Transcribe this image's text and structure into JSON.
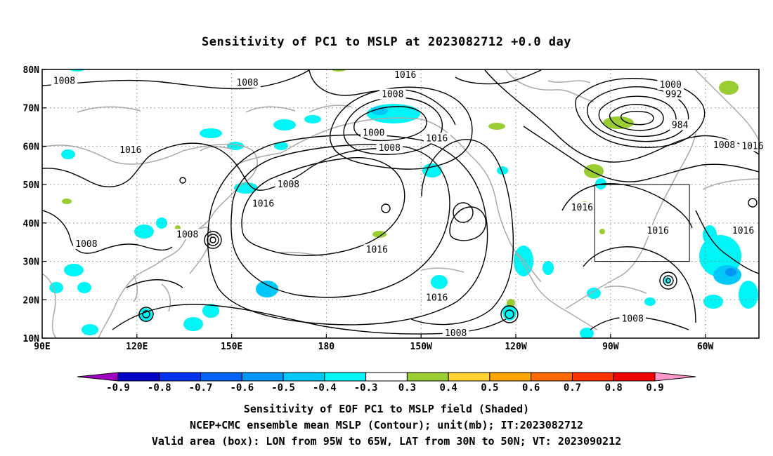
{
  "title": "Sensitivity of PC1 to MSLP at 2023082712 +0.0 day",
  "map": {
    "lon_ticks": [
      {
        "lon": 90,
        "label": "90E"
      },
      {
        "lon": 120,
        "label": "120E"
      },
      {
        "lon": 150,
        "label": "150E"
      },
      {
        "lon": 180,
        "label": "180"
      },
      {
        "lon": 210,
        "label": "150W"
      },
      {
        "lon": 240,
        "label": "120W"
      },
      {
        "lon": 270,
        "label": "90W"
      },
      {
        "lon": 300,
        "label": "60W"
      }
    ],
    "lat_ticks": [
      {
        "lat": 80,
        "label": "80N"
      },
      {
        "lat": 70,
        "label": "70N"
      },
      {
        "lat": 60,
        "label": "60N"
      },
      {
        "lat": 50,
        "label": "50N"
      },
      {
        "lat": 40,
        "label": "40N"
      },
      {
        "lat": 30,
        "label": "30N"
      },
      {
        "lat": 20,
        "label": "20N"
      },
      {
        "lat": 10,
        "label": "10N"
      }
    ],
    "lon_range": [
      90,
      317
    ],
    "lat_range": [
      10,
      80
    ],
    "grid": "dotted, every 30 deg lon and 10 deg lat",
    "valid_box": {
      "lon_w": -95,
      "lon_e": -65,
      "lat_s": 30,
      "lat_n": 50
    },
    "contour_labels": [
      {
        "text": "1008",
        "lon": 97,
        "lat": 77
      },
      {
        "text": "1008",
        "lon": 155,
        "lat": 76.5
      },
      {
        "text": "1016",
        "lon": 205,
        "lat": 78.5
      },
      {
        "text": "1008",
        "lon": 201,
        "lat": 73.5
      },
      {
        "text": "1000",
        "lon": 289,
        "lat": 76
      },
      {
        "text": "992",
        "lon": 290,
        "lat": 73.5
      },
      {
        "text": "984",
        "lon": 292,
        "lat": 65.5
      },
      {
        "text": "1016",
        "lon": 118,
        "lat": 59
      },
      {
        "text": "1000",
        "lon": 195,
        "lat": 63.5
      },
      {
        "text": "1008",
        "lon": 200,
        "lat": 59.5
      },
      {
        "text": "1016",
        "lon": 215,
        "lat": 62
      },
      {
        "text": "1008",
        "lon": 306,
        "lat": 60.3
      },
      {
        "text": "1016",
        "lon": 315,
        "lat": 60
      },
      {
        "text": "1008",
        "lon": 168,
        "lat": 50
      },
      {
        "text": "1016",
        "lon": 160,
        "lat": 45
      },
      {
        "text": "1016",
        "lon": 261,
        "lat": 44
      },
      {
        "text": "1016",
        "lon": 285,
        "lat": 38
      },
      {
        "text": "1016",
        "lon": 312,
        "lat": 38
      },
      {
        "text": "1008",
        "lon": 104,
        "lat": 34.5
      },
      {
        "text": "1008",
        "lon": 136,
        "lat": 37
      },
      {
        "text": "1016",
        "lon": 196,
        "lat": 33
      },
      {
        "text": "1016",
        "lon": 215,
        "lat": 20.5
      },
      {
        "text": "1008",
        "lon": 221,
        "lat": 11.3
      },
      {
        "text": "1008",
        "lon": 277,
        "lat": 15
      }
    ],
    "shading_colors": {
      "neg_0_3": "#00f6f6",
      "neg_0_4": "#00c8f8",
      "neg_0_5": "#0096f8",
      "neg_0_6": "#0064f8",
      "pos_0_3": "#9acd32"
    }
  },
  "colorbar": {
    "labels": [
      "-0.9",
      "-0.8",
      "-0.7",
      "-0.6",
      "-0.5",
      "-0.4",
      "-0.3",
      "0.3",
      "0.4",
      "0.5",
      "0.6",
      "0.7",
      "0.8",
      "0.9"
    ],
    "colors": [
      "#a000c0",
      "#0000c8",
      "#0032f0",
      "#0064f8",
      "#0096f8",
      "#00c8f8",
      "#00f6f6",
      "#ffffff",
      "#9acd32",
      "#ffd232",
      "#ffa500",
      "#ff6a00",
      "#ff3200",
      "#f00000",
      "#ff99cc"
    ]
  },
  "captions": [
    "Sensitivity of EOF PC1 to MSLP field (Shaded)",
    "NCEP+CMC ensemble mean MSLP (Contour); unit(mb); IT:2023082712",
    "Valid area (box): LON from 95W to 65W, LAT from 30N to 50N; VT: 2023090212"
  ]
}
